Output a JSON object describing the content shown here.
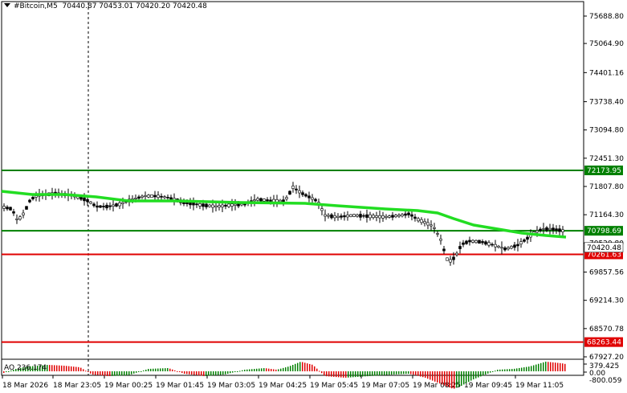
{
  "header": {
    "symbol": "#Bitcoin,M5",
    "ohlc": "70440.87 70453.01 70420.20 70420.48"
  },
  "oscillator": {
    "label": "AO 236.174",
    "axis_labels": [
      "379.425",
      "0.00",
      "-800.059"
    ]
  },
  "price_axis": {
    "labels": [
      "75688.80",
      "75064.90",
      "74401.16",
      "73738.40",
      "73094.80",
      "72451.30",
      "71807.80",
      "71164.30",
      "70520.80",
      "69857.56",
      "69214.30",
      "68570.78",
      "67927.20"
    ]
  },
  "time_axis": {
    "labels": [
      "18 Mar 2026",
      "18 Mar 23:05",
      "19 Mar 00:25",
      "19 Mar 01:45",
      "19 Mar 03:05",
      "19 Mar 04:25",
      "19 Mar 05:45",
      "19 Mar 07:05",
      "19 Mar 08:25",
      "19 Mar 09:45",
      "19 Mar 11:05"
    ]
  },
  "levels": [
    {
      "price": "72173.95",
      "color": "#008000"
    },
    {
      "price": "70798.69",
      "color": "#008000"
    },
    {
      "price": "70261.63",
      "color": "#e00000"
    },
    {
      "price": "68263.44",
      "color": "#e00000"
    }
  ],
  "current_price": "70420.48",
  "colors": {
    "moving_average": "#22dd22",
    "candles": "#000000",
    "ao_up": "#008000",
    "ao_down": "#e00000",
    "support": "#e00000",
    "resistance": "#008000"
  }
}
